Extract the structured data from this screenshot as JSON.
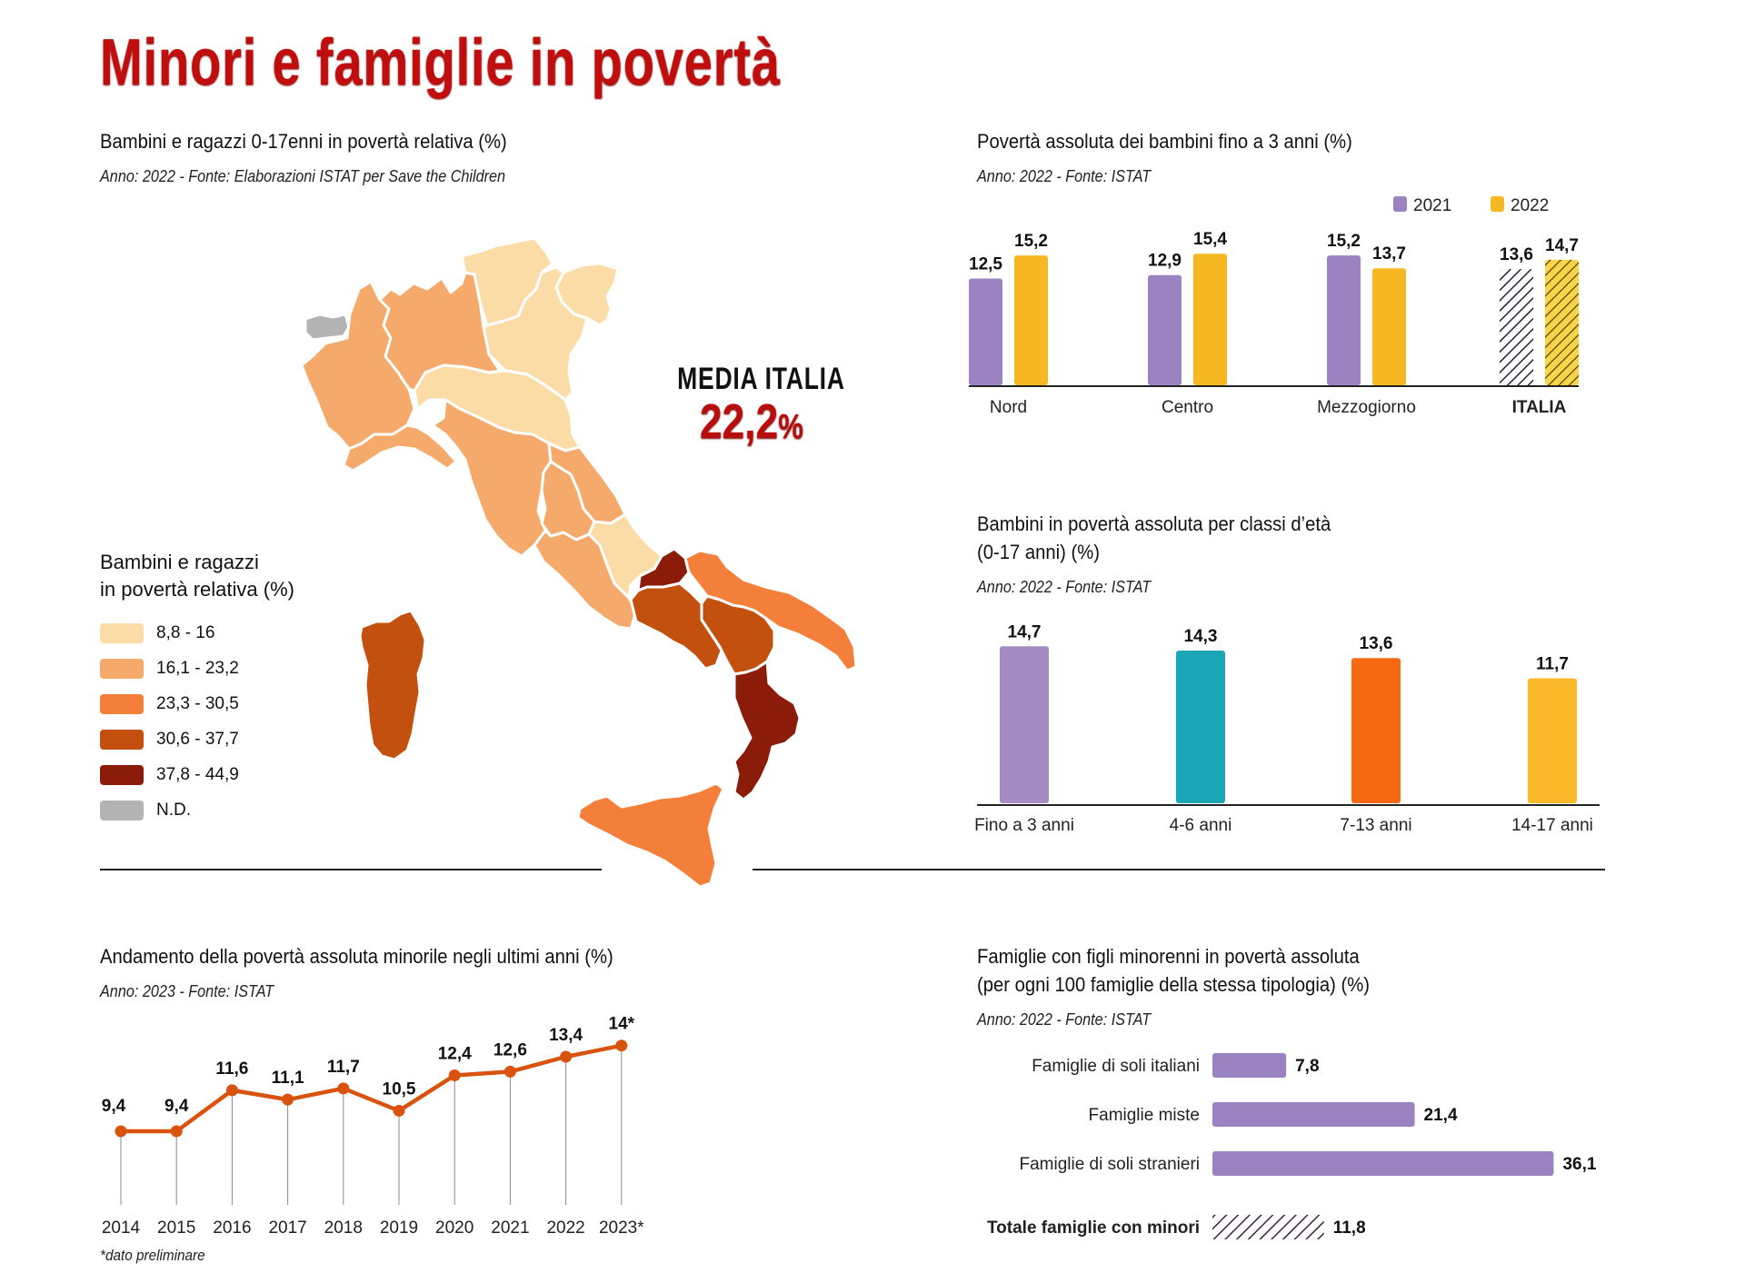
{
  "title": "Minori e famiglie in povertà",
  "map_section": {
    "title": "Bambini e ragazzi 0-17enni in povertà relativa (%)",
    "source": "Anno: 2022 - Fonte: Elaborazioni ISTAT per Save the Children",
    "media_label": "MEDIA ITALIA",
    "media_value": "22,2",
    "media_unit": "%",
    "legend": {
      "title_line1": "Bambini e ragazzi",
      "title_line2": "in povertà relativa (%)",
      "items": [
        {
          "label": "8,8 - 16",
          "color": "#fbdca6"
        },
        {
          "label": "16,1 - 23,2",
          "color": "#f5a96a"
        },
        {
          "label": "23,3 - 30,5",
          "color": "#f47f3a"
        },
        {
          "label": "30,6 - 37,7",
          "color": "#c4500f"
        },
        {
          "label": "37,8 - 44,9",
          "color": "#8c1c0a"
        },
        {
          "label": "N.D.",
          "color": "#b3b3b3"
        }
      ]
    },
    "regions": [
      {
        "name": "Valle d'Aosta",
        "class": "N.D."
      },
      {
        "name": "Piemonte",
        "class": "16,1 - 23,2"
      },
      {
        "name": "Liguria",
        "class": "16,1 - 23,2"
      },
      {
        "name": "Lombardia",
        "class": "16,1 - 23,2"
      },
      {
        "name": "Trentino-Alto Adige",
        "class": "8,8 - 16"
      },
      {
        "name": "Veneto",
        "class": "8,8 - 16"
      },
      {
        "name": "Friuli-Venezia Giulia",
        "class": "8,8 - 16"
      },
      {
        "name": "Emilia-Romagna",
        "class": "8,8 - 16"
      },
      {
        "name": "Toscana",
        "class": "16,1 - 23,2"
      },
      {
        "name": "Marche",
        "class": "16,1 - 23,2"
      },
      {
        "name": "Umbria",
        "class": "16,1 - 23,2"
      },
      {
        "name": "Lazio",
        "class": "16,1 - 23,2"
      },
      {
        "name": "Abruzzo",
        "class": "8,8 - 16"
      },
      {
        "name": "Molise",
        "class": "37,8 - 44,9"
      },
      {
        "name": "Campania",
        "class": "30,6 - 37,7"
      },
      {
        "name": "Puglia",
        "class": "23,3 - 30,5"
      },
      {
        "name": "Basilicata",
        "class": "30,6 - 37,7"
      },
      {
        "name": "Calabria",
        "class": "37,8 - 44,9"
      },
      {
        "name": "Sicilia",
        "class": "23,3 - 30,5"
      },
      {
        "name": "Sardegna",
        "class": "30,6 - 37,7"
      }
    ]
  },
  "chart_data": [
    {
      "id": "under3",
      "type": "bar",
      "title": "Povertà assoluta dei bambini fino a 3 anni (%)",
      "source": "Anno: 2022 - Fonte: ISTAT",
      "categories": [
        "Nord",
        "Centro",
        "Mezzogiorno",
        "ITALIA"
      ],
      "series": [
        {
          "name": "2021",
          "color": "#9b82c0",
          "values": [
            12.5,
            12.9,
            15.2,
            13.6
          ],
          "labels": [
            "12,5",
            "12,9",
            "15,2",
            "13,6"
          ]
        },
        {
          "name": "2022",
          "color": "#f6b821",
          "values": [
            15.2,
            15.4,
            13.7,
            14.7
          ],
          "labels": [
            "15,2",
            "15,4",
            "13,7",
            "14,7"
          ]
        }
      ],
      "hatched_category": "ITALIA",
      "legend": "top-right",
      "ylim": [
        0,
        16
      ]
    },
    {
      "id": "age",
      "type": "bar",
      "title_line1": "Bambini in povertà assoluta per classi d’età",
      "title_line2": "(0-17 anni) (%)",
      "source": "Anno: 2022 - Fonte: ISTAT",
      "categories": [
        "Fino a 3 anni",
        "4-6 anni",
        "7-13 anni",
        "14-17 anni"
      ],
      "values": [
        14.7,
        14.3,
        13.6,
        11.7
      ],
      "labels": [
        "14,7",
        "14,3",
        "13,6",
        "11,7"
      ],
      "colors": [
        "#a48bc4",
        "#1aa6b5",
        "#f66812",
        "#fbb829"
      ],
      "ylim": [
        0,
        15
      ]
    },
    {
      "id": "trend",
      "type": "line",
      "title": "Andamento della povertà assoluta minorile negli ultimi anni (%)",
      "source": "Anno: 2023 - Fonte: ISTAT",
      "x": [
        "2014",
        "2015",
        "2016",
        "2017",
        "2018",
        "2019",
        "2020",
        "2021",
        "2022",
        "2023*"
      ],
      "values": [
        9.4,
        9.4,
        11.6,
        11.1,
        11.7,
        10.5,
        12.4,
        12.6,
        13.4,
        14
      ],
      "labels": [
        "9,4",
        "9,4",
        "11,6",
        "11,1",
        "11,7",
        "10,5",
        "12,4",
        "12,6",
        "13,4",
        "14*"
      ],
      "color": "#d9530f",
      "footnote": "*dato preliminare"
    },
    {
      "id": "families",
      "type": "bar",
      "orientation": "horizontal",
      "title_line1": "Famiglie con figli minorenni in povertà assoluta",
      "title_line2": "(per ogni 100 famiglie della stessa tipologia) (%)",
      "source": "Anno: 2022 - Fonte: ISTAT",
      "categories": [
        "Famiglie di soli italiani",
        "Famiglie miste",
        "Famiglie di soli stranieri"
      ],
      "values": [
        7.8,
        21.4,
        36.1
      ],
      "labels": [
        "7,8",
        "21,4",
        "36,1"
      ],
      "color": "#9b82c0",
      "total": {
        "label": "Totale famiglie con minori",
        "value": 11.8,
        "value_label": "11,8"
      },
      "xlim": [
        0,
        36.1
      ]
    }
  ]
}
